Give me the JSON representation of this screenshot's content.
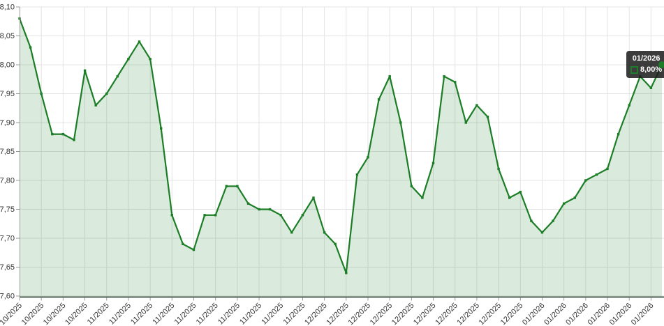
{
  "tooltip": {
    "title": "01/2026",
    "value": "8,00%"
  },
  "colors": {
    "line": "#1b7d26",
    "fill": "rgba(27,125,38,0.16)",
    "grid": "#e4e4e4",
    "y_axis_line": "#999999",
    "x_axis_line": "#57695d",
    "tick": "#999999",
    "label": "#333333",
    "tooltip_bg": "rgba(28,28,28,0.86)",
    "tooltip_text": "#ffffff"
  },
  "chart_data": {
    "type": "area",
    "title": "",
    "xlabel": "",
    "ylabel": "",
    "unit": "%",
    "decimal_separator": ",",
    "ylim": [
      7.6,
      8.1
    ],
    "ytick_step": 0.05,
    "y_tick_labels": [
      "8,10",
      "8,05",
      "8,00",
      "7,95",
      "7,90",
      "7,85",
      "7,80",
      "7,75",
      "7,70",
      "7,65",
      "7,60"
    ],
    "x_label_every": 2,
    "x_label_rotation": -45,
    "grid": true,
    "legend_position": "none",
    "last_point_highlighted": true,
    "x": [
      "10/2025",
      "10/2025",
      "10/2025",
      "10/2025",
      "10/2025",
      "10/2025",
      "10/2025",
      "10/2025",
      "11/2025",
      "11/2025",
      "11/2025",
      "11/2025",
      "11/2025",
      "11/2025",
      "11/2025",
      "11/2025",
      "11/2025",
      "11/2025",
      "11/2025",
      "11/2025",
      "11/2025",
      "11/2025",
      "11/2025",
      "11/2025",
      "11/2025",
      "11/2025",
      "11/2025",
      "11/2025",
      "12/2025",
      "12/2025",
      "12/2025",
      "12/2025",
      "12/2025",
      "12/2025",
      "12/2025",
      "12/2025",
      "12/2025",
      "12/2025",
      "12/2025",
      "12/2025",
      "12/2025",
      "12/2025",
      "12/2025",
      "12/2025",
      "12/2025",
      "12/2025",
      "12/2025",
      "12/2025",
      "01/2026",
      "01/2026",
      "01/2026",
      "01/2026",
      "01/2026",
      "01/2026",
      "01/2026",
      "01/2026",
      "01/2026",
      "01/2026",
      "01/2026",
      "01/2026"
    ],
    "values": [
      8.08,
      8.03,
      7.95,
      7.88,
      7.88,
      7.87,
      7.99,
      7.93,
      7.95,
      7.98,
      8.01,
      8.04,
      8.01,
      7.89,
      7.74,
      7.69,
      7.68,
      7.74,
      7.74,
      7.79,
      7.79,
      7.76,
      7.75,
      7.75,
      7.74,
      7.71,
      7.74,
      7.77,
      7.71,
      7.69,
      7.64,
      7.81,
      7.84,
      7.94,
      7.98,
      7.9,
      7.79,
      7.77,
      7.83,
      7.98,
      7.97,
      7.9,
      7.93,
      7.91,
      7.82,
      7.77,
      7.78,
      7.73,
      7.71,
      7.73,
      7.76,
      7.77,
      7.8,
      7.81,
      7.82,
      7.88,
      7.93,
      7.98,
      7.96,
      8.0
    ]
  }
}
